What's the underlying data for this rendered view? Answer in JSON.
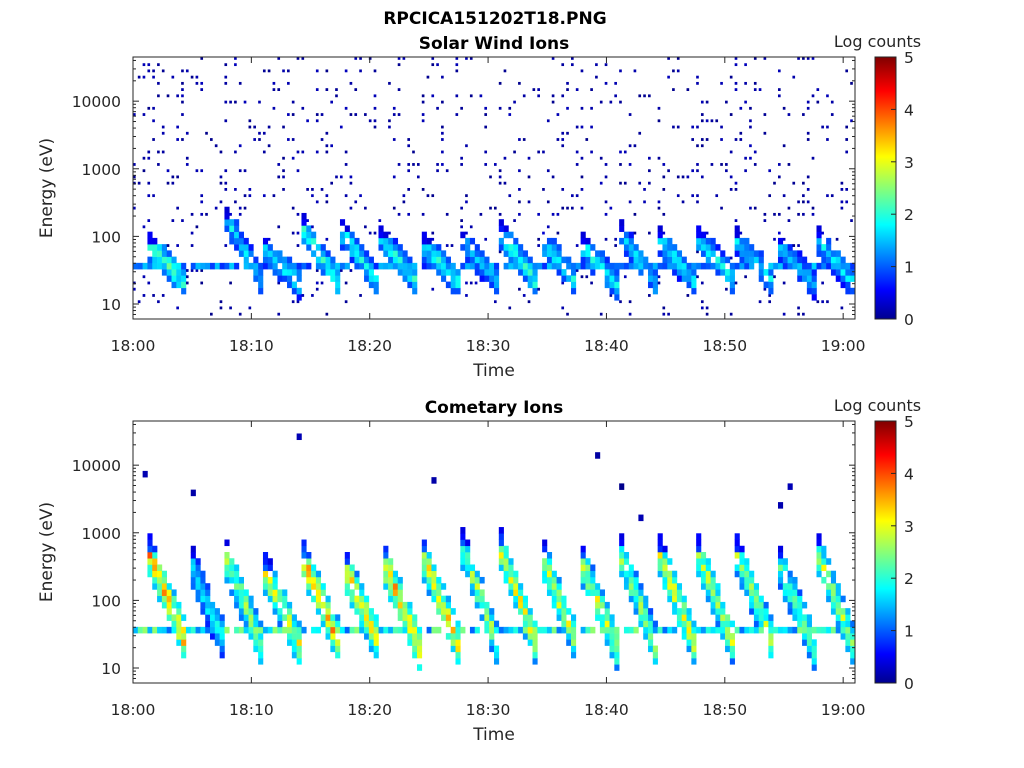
{
  "figure_title": "RPCICA151202T18.PNG",
  "chart_data": [
    {
      "type": "heatmap",
      "title": "Solar Wind Ions",
      "xlabel": "Time",
      "ylabel": "Energy (eV)",
      "x_ticks": [
        "18:00",
        "18:10",
        "18:20",
        "18:30",
        "18:40",
        "18:50",
        "19:00"
      ],
      "x_range": [
        "18:00",
        "19:01"
      ],
      "y_scale": "log",
      "y_ticks": [
        "10",
        "100",
        "1000",
        "10000"
      ],
      "y_range": [
        6,
        45000
      ],
      "colorbar": {
        "label": "Log counts",
        "range": [
          0,
          5
        ],
        "ticks": [
          "0",
          "1",
          "2",
          "3",
          "4",
          "5"
        ],
        "colormap": "jet"
      },
      "pulses": [
        {
          "t": 2,
          "peak_eV": 70,
          "log_counts": 2.4
        },
        {
          "t": 8.5,
          "peak_eV": 180,
          "log_counts": 1.8
        },
        {
          "t": 11.5,
          "peak_eV": 70,
          "log_counts": 1.9
        },
        {
          "t": 14.8,
          "peak_eV": 150,
          "log_counts": 2.2
        },
        {
          "t": 18.2,
          "peak_eV": 120,
          "log_counts": 2.0
        },
        {
          "t": 21.5,
          "peak_eV": 100,
          "log_counts": 2.0
        },
        {
          "t": 25.0,
          "peak_eV": 80,
          "log_counts": 2.0
        },
        {
          "t": 28.3,
          "peak_eV": 90,
          "log_counts": 1.6
        },
        {
          "t": 31.6,
          "peak_eV": 110,
          "log_counts": 2.2
        },
        {
          "t": 35.0,
          "peak_eV": 90,
          "log_counts": 1.9
        },
        {
          "t": 38.3,
          "peak_eV": 80,
          "log_counts": 2.0
        },
        {
          "t": 41.6,
          "peak_eV": 120,
          "log_counts": 1.8
        },
        {
          "t": 45.0,
          "peak_eV": 90,
          "log_counts": 1.9
        },
        {
          "t": 48.3,
          "peak_eV": 100,
          "log_counts": 2.0
        },
        {
          "t": 51.6,
          "peak_eV": 90,
          "log_counts": 1.8
        },
        {
          "t": 55.0,
          "peak_eV": 80,
          "log_counts": 1.6
        },
        {
          "t": 58.3,
          "peak_eV": 100,
          "log_counts": 1.8
        }
      ]
    },
    {
      "type": "heatmap",
      "title": "Cometary Ions",
      "xlabel": "Time",
      "ylabel": "Energy (eV)",
      "x_ticks": [
        "18:00",
        "18:10",
        "18:20",
        "18:30",
        "18:40",
        "18:50",
        "19:00"
      ],
      "x_range": [
        "18:00",
        "19:01"
      ],
      "y_scale": "log",
      "y_ticks": [
        "10",
        "100",
        "1000",
        "10000"
      ],
      "y_range": [
        6,
        45000
      ],
      "colorbar": {
        "label": "Log counts",
        "range": [
          0,
          5
        ],
        "ticks": [
          "0",
          "1",
          "2",
          "3",
          "4",
          "5"
        ],
        "colormap": "jet"
      },
      "pulses": [
        {
          "t": 2,
          "peak_eV": 500,
          "log_counts": 3.6
        },
        {
          "t": 5.3,
          "peak_eV": 400,
          "log_counts": 2.0
        },
        {
          "t": 8.3,
          "peak_eV": 500,
          "log_counts": 2.8
        },
        {
          "t": 11.6,
          "peak_eV": 300,
          "log_counts": 3.0
        },
        {
          "t": 15.0,
          "peak_eV": 400,
          "log_counts": 3.6
        },
        {
          "t": 18.3,
          "peak_eV": 350,
          "log_counts": 3.4
        },
        {
          "t": 21.6,
          "peak_eV": 450,
          "log_counts": 3.6
        },
        {
          "t": 25.0,
          "peak_eV": 500,
          "log_counts": 3.4
        },
        {
          "t": 28.3,
          "peak_eV": 700,
          "log_counts": 2.8
        },
        {
          "t": 31.6,
          "peak_eV": 600,
          "log_counts": 3.2
        },
        {
          "t": 35.0,
          "peak_eV": 500,
          "log_counts": 3.0
        },
        {
          "t": 38.3,
          "peak_eV": 450,
          "log_counts": 3.0
        },
        {
          "t": 41.6,
          "peak_eV": 600,
          "log_counts": 2.8
        },
        {
          "t": 45.0,
          "peak_eV": 500,
          "log_counts": 3.2
        },
        {
          "t": 48.3,
          "peak_eV": 500,
          "log_counts": 3.0
        },
        {
          "t": 51.6,
          "peak_eV": 500,
          "log_counts": 2.8
        },
        {
          "t": 55.0,
          "peak_eV": 400,
          "log_counts": 2.6
        },
        {
          "t": 58.3,
          "peak_eV": 600,
          "log_counts": 2.8
        }
      ]
    }
  ]
}
